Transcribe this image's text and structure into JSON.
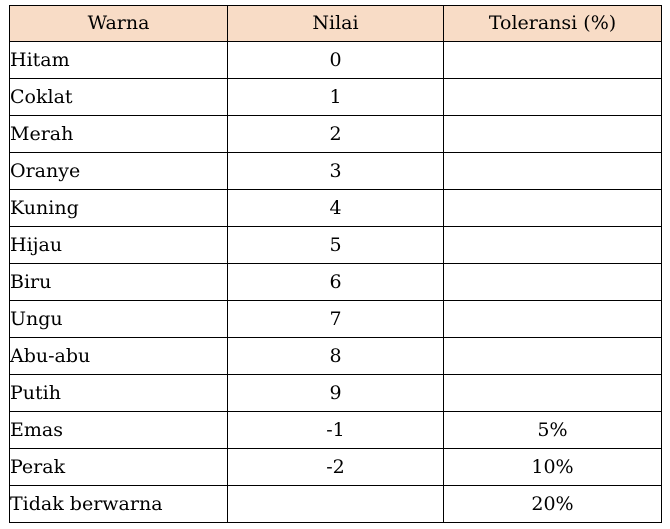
{
  "table": {
    "headers": [
      "Warna",
      "Nilai",
      "Toleransi (%)"
    ],
    "header_bg": "#f8dcc6",
    "rows": [
      {
        "warna": "Hitam",
        "nilai": "0",
        "toleransi": ""
      },
      {
        "warna": "Coklat",
        "nilai": "1",
        "toleransi": ""
      },
      {
        "warna": "Merah",
        "nilai": "2",
        "toleransi": ""
      },
      {
        "warna": "Oranye",
        "nilai": "3",
        "toleransi": ""
      },
      {
        "warna": "Kuning",
        "nilai": "4",
        "toleransi": ""
      },
      {
        "warna": "Hijau",
        "nilai": "5",
        "toleransi": ""
      },
      {
        "warna": "Biru",
        "nilai": "6",
        "toleransi": ""
      },
      {
        "warna": "Ungu",
        "nilai": "7",
        "toleransi": ""
      },
      {
        "warna": "Abu-abu",
        "nilai": "8",
        "toleransi": ""
      },
      {
        "warna": "Putih",
        "nilai": "9",
        "toleransi": ""
      },
      {
        "warna": "Emas",
        "nilai": "-1",
        "toleransi": "5%"
      },
      {
        "warna": "Perak",
        "nilai": "-2",
        "toleransi": "10%"
      },
      {
        "warna": "Tidak berwarna",
        "nilai": "",
        "toleransi": "20%"
      }
    ]
  }
}
